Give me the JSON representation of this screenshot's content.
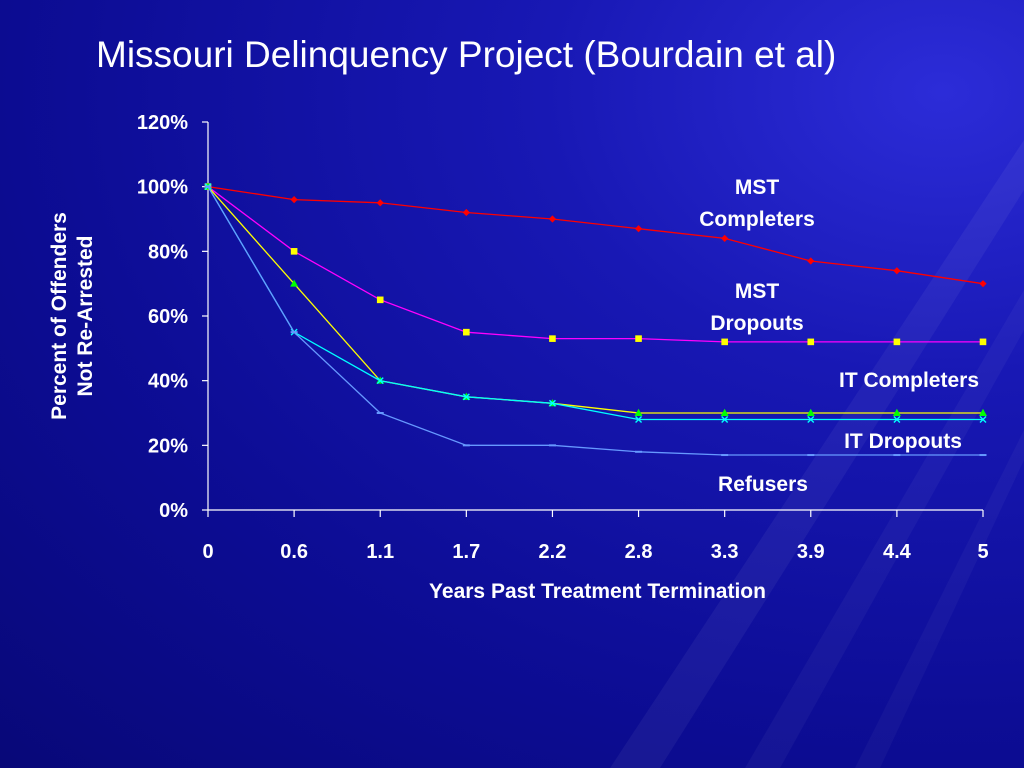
{
  "slide": {
    "title": "Missouri Delinquency Project (Bourdain et al)"
  },
  "chart_data": {
    "type": "line",
    "x": [
      "0",
      "0.6",
      "1.1",
      "1.7",
      "2.2",
      "2.8",
      "3.3",
      "3.9",
      "4.4",
      "5"
    ],
    "xlabel": "Years Past Treatment Termination",
    "ylabel": "Percent of Offenders Not Re-Arrested",
    "ylabel_lines": [
      "Percent of Offenders",
      "Not Re-Arrested"
    ],
    "ylim": [
      0,
      120
    ],
    "yticks": [
      "0%",
      "20%",
      "40%",
      "60%",
      "80%",
      "100%",
      "120%"
    ],
    "grid": false,
    "legend": "none",
    "series": [
      {
        "name": "MST Completers",
        "label_lines": [
          "MST",
          "Completers"
        ],
        "color": "#ff0000",
        "marker": "diamond",
        "values": [
          100,
          96,
          95,
          92,
          90,
          87,
          84,
          77,
          74,
          70
        ]
      },
      {
        "name": "MST Dropouts",
        "label_lines": [
          "MST",
          "Dropouts"
        ],
        "color": "#ff00ff",
        "marker": "square",
        "marker_color": "#ffff00",
        "values": [
          100,
          80,
          65,
          55,
          53,
          53,
          52,
          52,
          52,
          52
        ]
      },
      {
        "name": "IT Completers",
        "label_lines": [
          "IT Completers"
        ],
        "color": "#ffff00",
        "marker": "triangle",
        "marker_color": "#00ff00",
        "values": [
          100,
          70,
          40,
          35,
          33,
          30,
          30,
          30,
          30,
          30
        ]
      },
      {
        "name": "IT Dropouts",
        "label_lines": [
          "IT Dropouts"
        ],
        "color": "#00ffff",
        "marker": "x",
        "values": [
          100,
          55,
          40,
          35,
          33,
          28,
          28,
          28,
          28,
          28
        ]
      },
      {
        "name": "Refusers",
        "label_lines": [
          "Refusers"
        ],
        "color": "#6699ff",
        "marker": "dash",
        "values": [
          100,
          55,
          30,
          20,
          20,
          18,
          17,
          17,
          17,
          17
        ]
      }
    ]
  }
}
